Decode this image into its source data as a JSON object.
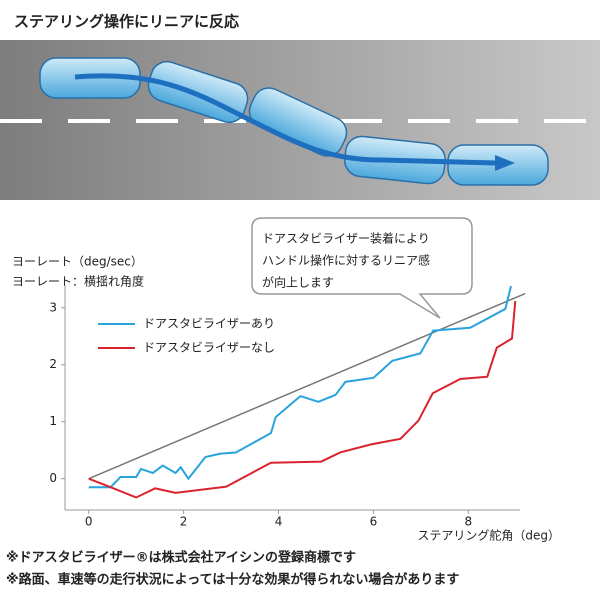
{
  "chart_data": {
    "type": "line",
    "title": "ステアリング操作にリニアに反応",
    "y_label": "ヨーレート（deg/sec）",
    "y_label_note": "ヨーレート：横揺れ角度",
    "x_label": "ステアリング舵角（deg）",
    "annotation": [
      "ドアスタビライザー装着により",
      "ハンドル操作に対するリニア感",
      "が向上します"
    ],
    "notes": [
      "※ドアスタビライザー®は株式会社アイシンの登録商標です",
      "※路面、車速等の走行状況によっては十分な効果が得られない場合があります"
    ],
    "xlim": [
      -0.5,
      9.3
    ],
    "ylim": [
      -0.55,
      3.4
    ],
    "xticks": [
      0,
      2,
      4,
      6,
      8
    ],
    "yticks": [
      0,
      1,
      2,
      3
    ],
    "reference": {
      "color": "#777777",
      "x": [
        0,
        9.2
      ],
      "values": [
        0,
        3.25
      ]
    },
    "series": [
      {
        "name": "ドアスタビライザーあり",
        "color": "#29a3dc",
        "x": [
          0,
          0.46,
          0.67,
          1.0,
          1.1,
          1.35,
          1.56,
          1.83,
          1.94,
          2.1,
          2.46,
          2.78,
          3.1,
          3.84,
          3.94,
          4.46,
          4.84,
          5.2,
          5.41,
          6.0,
          6.4,
          6.99,
          7.26,
          8.04,
          8.78,
          8.9
        ],
        "values": [
          -0.15,
          -0.15,
          0.03,
          0.03,
          0.17,
          0.1,
          0.23,
          0.1,
          0.2,
          0,
          0.38,
          0.44,
          0.46,
          0.8,
          1.08,
          1.45,
          1.35,
          1.47,
          1.7,
          1.77,
          2.07,
          2.2,
          2.6,
          2.65,
          2.98,
          3.38
        ]
      },
      {
        "name": "ドアスタビライザーなし",
        "color": "#d9232d",
        "x": [
          0,
          0.46,
          1.0,
          1.4,
          1.83,
          2.9,
          3.84,
          4.9,
          5.3,
          5.94,
          6.57,
          6.95,
          7.25,
          7.83,
          8.4,
          8.6,
          8.92,
          8.99
        ],
        "values": [
          0,
          -0.15,
          -0.33,
          -0.17,
          -0.25,
          -0.14,
          0.28,
          0.3,
          0.46,
          0.6,
          0.7,
          1.02,
          1.5,
          1.75,
          1.79,
          2.3,
          2.46,
          3.12
        ]
      }
    ]
  }
}
